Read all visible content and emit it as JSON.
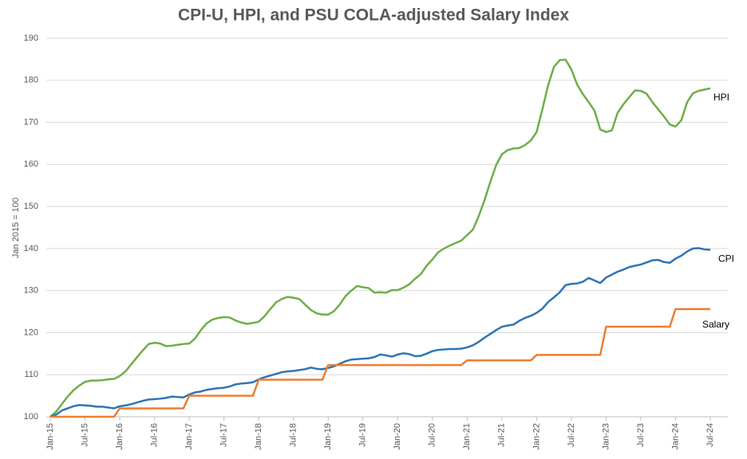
{
  "chart_data": {
    "type": "line",
    "title": "CPI-U, HPI, and PSU COLA-adjusted Salary Index",
    "y_label": "Jan 2015 = 100",
    "categories": [
      "Jan-15",
      null,
      null,
      null,
      null,
      null,
      "Jul-15",
      null,
      null,
      null,
      null,
      null,
      "Jan-16",
      null,
      null,
      null,
      null,
      null,
      "Jul-16",
      null,
      null,
      null,
      null,
      null,
      "Jan-17",
      null,
      null,
      null,
      null,
      null,
      "Jul-17",
      null,
      null,
      null,
      null,
      null,
      "Jan-18",
      null,
      null,
      null,
      null,
      null,
      "Jul-18",
      null,
      null,
      null,
      null,
      null,
      "Jan-19",
      null,
      null,
      null,
      null,
      null,
      "Jul-19",
      null,
      null,
      null,
      null,
      null,
      "Jan-20",
      null,
      null,
      null,
      null,
      null,
      "Jul-20",
      null,
      null,
      null,
      null,
      null,
      "Jan-21",
      null,
      null,
      null,
      null,
      null,
      "Jul-21",
      null,
      null,
      null,
      null,
      null,
      "Jan-22",
      null,
      null,
      null,
      null,
      null,
      "Jul-22",
      null,
      null,
      null,
      null,
      null,
      "Jan-23",
      null,
      null,
      null,
      null,
      null,
      "Jul-23",
      null,
      null,
      null,
      null,
      null,
      "Jan-24",
      null,
      null,
      null,
      null,
      null,
      "Jul-24"
    ],
    "series": [
      {
        "name": "HPI",
        "color": "#70ad47",
        "values": [
          100,
          101.2,
          103,
          104.8,
          106.3,
          107.4,
          108.3,
          108.6,
          108.6,
          108.7,
          108.9,
          109.0,
          109.7,
          110.8,
          112.5,
          114.2,
          115.8,
          117.3,
          117.6,
          117.4,
          116.8,
          116.9,
          117.1,
          117.3,
          117.4,
          118.6,
          120.6,
          122.2,
          123.1,
          123.5,
          123.7,
          123.6,
          122.9,
          122.4,
          122.1,
          122.3,
          122.6,
          123.9,
          125.6,
          127.2,
          128.0,
          128.5,
          128.3,
          128.0,
          126.7,
          125.4,
          124.6,
          124.3,
          124.3,
          125.1,
          126.7,
          128.7,
          130.0,
          131.1,
          130.8,
          130.6,
          129.5,
          129.6,
          129.5,
          130.1,
          130.1,
          130.7,
          131.5,
          132.8,
          133.9,
          135.9,
          137.4,
          139.1,
          140.0,
          140.7,
          141.3,
          141.9,
          143.2,
          144.5,
          147.7,
          151.5,
          155.8,
          159.8,
          162.4,
          163.4,
          163.8,
          163.9,
          164.6,
          165.7,
          167.7,
          173.1,
          178.9,
          183.2,
          184.8,
          184.9,
          182.6,
          179.0,
          176.7,
          174.8,
          172.8,
          168.3,
          167.7,
          168.1,
          172.3,
          174.3,
          176.0,
          177.6,
          177.5,
          176.8,
          174.8,
          173.1,
          171.4,
          169.5,
          169.0,
          170.5,
          174.8,
          176.9,
          177.5,
          177.8,
          178.1
        ]
      },
      {
        "name": "CPI",
        "color": "#2e75b6",
        "values": [
          100,
          100.5,
          101.5,
          102,
          102.5,
          102.8,
          102.7,
          102.6,
          102.4,
          102.4,
          102.2,
          102.0,
          102.5,
          102.7,
          103.0,
          103.4,
          103.8,
          104.1,
          104.2,
          104.3,
          104.5,
          104.8,
          104.7,
          104.6,
          105.3,
          105.8,
          106.0,
          106.4,
          106.6,
          106.8,
          106.9,
          107.2,
          107.7,
          107.9,
          108.0,
          108.2,
          108.9,
          109.4,
          109.8,
          110.2,
          110.6,
          110.8,
          110.9,
          111.1,
          111.3,
          111.7,
          111.4,
          111.3,
          111.6,
          112.0,
          112.6,
          113.2,
          113.6,
          113.7,
          113.8,
          113.9,
          114.2,
          114.8,
          114.6,
          114.3,
          114.8,
          115.1,
          114.9,
          114.4,
          114.5,
          115.0,
          115.6,
          115.9,
          116.0,
          116.1,
          116.1,
          116.2,
          116.5,
          117.0,
          117.8,
          118.8,
          119.7,
          120.6,
          121.4,
          121.7,
          121.9,
          122.8,
          123.5,
          124.0,
          124.7,
          125.7,
          127.3,
          128.4,
          129.6,
          131.3,
          131.6,
          131.7,
          132.1,
          133.0,
          132.4,
          131.8,
          133.1,
          133.8,
          134.5,
          135.0,
          135.6,
          135.9,
          136.2,
          136.7,
          137.2,
          137.3,
          136.8,
          136.6,
          137.6,
          138.3,
          139.3,
          140.0,
          140.1,
          139.8,
          139.7
        ]
      },
      {
        "name": "Salary",
        "color": "#ed7d31",
        "values": [
          100,
          100,
          100,
          100,
          100,
          100,
          100,
          100,
          100,
          100,
          100,
          100,
          102,
          102,
          102,
          102,
          102,
          102,
          102,
          102,
          102,
          102,
          102,
          102,
          105,
          105,
          105,
          105,
          105,
          105,
          105,
          105,
          105,
          105,
          105,
          105,
          108.8,
          108.8,
          108.8,
          108.8,
          108.8,
          108.8,
          108.8,
          108.8,
          108.8,
          108.8,
          108.8,
          108.8,
          112.3,
          112.3,
          112.3,
          112.3,
          112.3,
          112.3,
          112.3,
          112.3,
          112.3,
          112.3,
          112.3,
          112.3,
          112.3,
          112.3,
          112.3,
          112.3,
          112.3,
          112.3,
          112.3,
          112.3,
          112.3,
          112.3,
          112.3,
          112.3,
          113.4,
          113.4,
          113.4,
          113.4,
          113.4,
          113.4,
          113.4,
          113.4,
          113.4,
          113.4,
          113.4,
          113.4,
          114.7,
          114.7,
          114.7,
          114.7,
          114.7,
          114.7,
          114.7,
          114.7,
          114.7,
          114.7,
          114.7,
          114.7,
          121.4,
          121.4,
          121.4,
          121.4,
          121.4,
          121.4,
          121.4,
          121.4,
          121.4,
          121.4,
          121.4,
          121.4,
          125.6,
          125.6,
          125.6,
          125.6,
          125.6,
          125.6,
          125.6
        ]
      }
    ],
    "ylim": [
      100,
      190
    ],
    "yticks": [
      100,
      110,
      120,
      130,
      140,
      150,
      160,
      170,
      180,
      190
    ],
    "grid": true
  }
}
